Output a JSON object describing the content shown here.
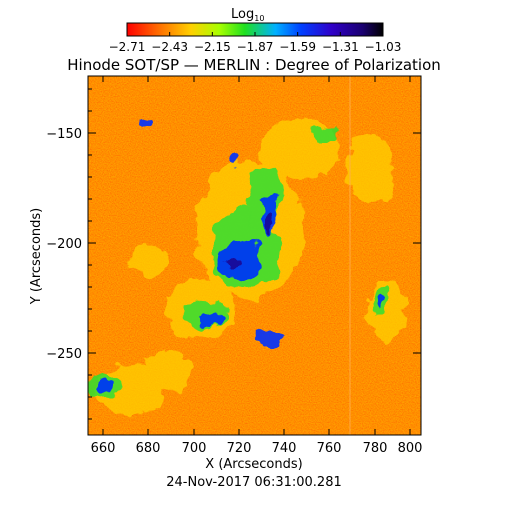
{
  "figure": {
    "title": "Hinode SOT/SP — MERLIN : Degree of Polarization",
    "timestamp": "24-Nov-2017 06:31:00.281"
  },
  "colorbar": {
    "label_main": "Log",
    "label_sub": "10",
    "ticks": [
      "−2.71",
      "−2.43",
      "−2.15",
      "−1.87",
      "−1.59",
      "−1.31",
      "−1.03"
    ],
    "colormap": [
      "#ff0000",
      "#ff6a00",
      "#ffd000",
      "#a8ff00",
      "#20e020",
      "#00b0ff",
      "#0040ff",
      "#3000c8",
      "#1a0070",
      "#000000"
    ]
  },
  "axes": {
    "xlabel": "X (Arcseconds)",
    "ylabel": "Y (Arcseconds)",
    "x_ticks": [
      "660",
      "680",
      "700",
      "720",
      "740",
      "760",
      "780",
      "800"
    ],
    "y_ticks": [
      "−150",
      "−200",
      "−250"
    ]
  },
  "image": {
    "description_colors": {
      "background_low": "#ff5a00",
      "mid": "#ffd000",
      "green": "#30e030",
      "high": "#1020c0"
    }
  }
}
